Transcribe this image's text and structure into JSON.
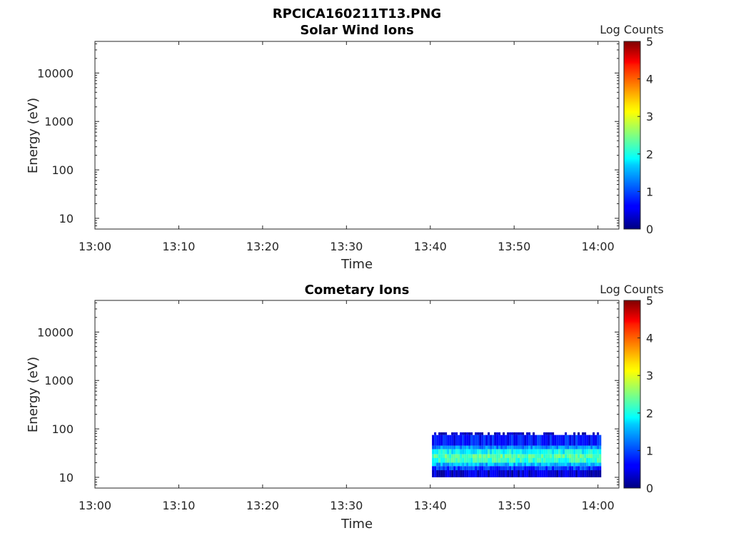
{
  "figure_title": "RPCICA160211T13.PNG",
  "chart_data": [
    {
      "type": "heatmap",
      "title": "Solar Wind Ions",
      "xlabel": "Time",
      "ylabel": "Energy (eV)",
      "x_ticks": [
        "13:00",
        "13:10",
        "13:20",
        "13:30",
        "13:40",
        "13:50",
        "14:00"
      ],
      "x_range_min": [
        0,
        62.5
      ],
      "y_scale": "log",
      "y_ticks": [
        10,
        100,
        1000,
        10000
      ],
      "y_tick_labels": [
        "10",
        "100",
        "1000",
        "10000"
      ],
      "y_range_ev": [
        6,
        45000
      ],
      "colorbar": {
        "label": "Log Counts",
        "range": [
          0,
          5
        ],
        "ticks": [
          "0",
          "1",
          "2",
          "3",
          "4",
          "5"
        ],
        "colormap": "jet"
      },
      "data_segments": []
    },
    {
      "type": "heatmap",
      "title": "Cometary Ions",
      "xlabel": "Time",
      "ylabel": "Energy (eV)",
      "x_ticks": [
        "13:00",
        "13:10",
        "13:20",
        "13:30",
        "13:40",
        "13:50",
        "14:00"
      ],
      "x_range_min": [
        0,
        62.5
      ],
      "y_scale": "log",
      "y_ticks": [
        10,
        100,
        1000,
        10000
      ],
      "y_tick_labels": [
        "10",
        "100",
        "1000",
        "10000"
      ],
      "y_range_ev": [
        6,
        45000
      ],
      "colorbar": {
        "label": "Log Counts",
        "range": [
          0,
          5
        ],
        "ticks": [
          "0",
          "1",
          "2",
          "3",
          "4",
          "5"
        ],
        "colormap": "jet"
      },
      "data_segments": [
        {
          "t_start_min": 40.2,
          "t_end_min": 60.4,
          "energy_bands": [
            {
              "e_low": 75,
              "e_high": 85,
              "log_counts": 0.2
            },
            {
              "e_low": 45,
              "e_high": 75,
              "log_counts": 0.7
            },
            {
              "e_low": 38,
              "e_high": 45,
              "log_counts": 1.3
            },
            {
              "e_low": 30,
              "e_high": 38,
              "log_counts": 1.9
            },
            {
              "e_low": 25,
              "e_high": 30,
              "log_counts": 2.3
            },
            {
              "e_low": 20,
              "e_high": 25,
              "log_counts": 2.1
            },
            {
              "e_low": 17,
              "e_high": 20,
              "log_counts": 1.5
            },
            {
              "e_low": 14,
              "e_high": 17,
              "log_counts": 0.9
            },
            {
              "e_low": 10,
              "e_high": 14,
              "log_counts": 0.4
            }
          ]
        }
      ]
    }
  ]
}
